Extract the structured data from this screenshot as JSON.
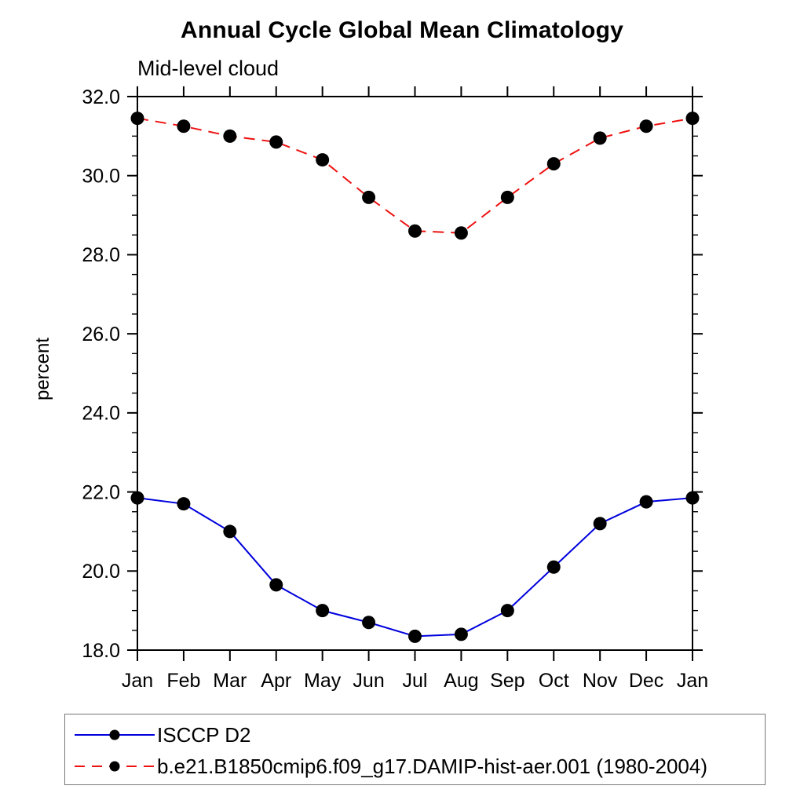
{
  "page": {
    "background": "#ffffff"
  },
  "chart_data": {
    "type": "line",
    "title": "Annual Cycle Global Mean Climatology",
    "subtitle": "Mid-level cloud",
    "ylabel": "percent",
    "xlabel": "",
    "x_categories": [
      "Jan",
      "Feb",
      "Mar",
      "Apr",
      "May",
      "Jun",
      "Jul",
      "Aug",
      "Sep",
      "Oct",
      "Nov",
      "Dec",
      "Jan"
    ],
    "ylim": [
      18.0,
      32.0
    ],
    "yticks": [
      18,
      20,
      22,
      24,
      26,
      28,
      30,
      32
    ],
    "ytick_labels": [
      "18.0",
      "20.0",
      "22.0",
      "24.0",
      "26.0",
      "28.0",
      "30.0",
      "32.0"
    ],
    "y_minor_step": 0.5,
    "grid": false,
    "legend_position": "bottom-left-box",
    "marker": {
      "shape": "circle",
      "color": "#000000"
    },
    "series": [
      {
        "name": "ISCCP D2",
        "color": "#0000dd",
        "line_style": "solid",
        "values": [
          21.85,
          21.7,
          21.0,
          19.65,
          19.0,
          18.7,
          18.35,
          18.4,
          19.0,
          20.1,
          21.2,
          21.75,
          21.85
        ]
      },
      {
        "name": "b.e21.B1850cmip6.f09_g17.DAMIP-hist-aer.001 (1980-2004)",
        "color": "#ee1111",
        "line_style": "dashed",
        "values": [
          31.45,
          31.25,
          31.0,
          30.85,
          30.4,
          29.45,
          28.6,
          28.55,
          29.45,
          30.3,
          30.95,
          31.25,
          31.45
        ]
      }
    ]
  }
}
